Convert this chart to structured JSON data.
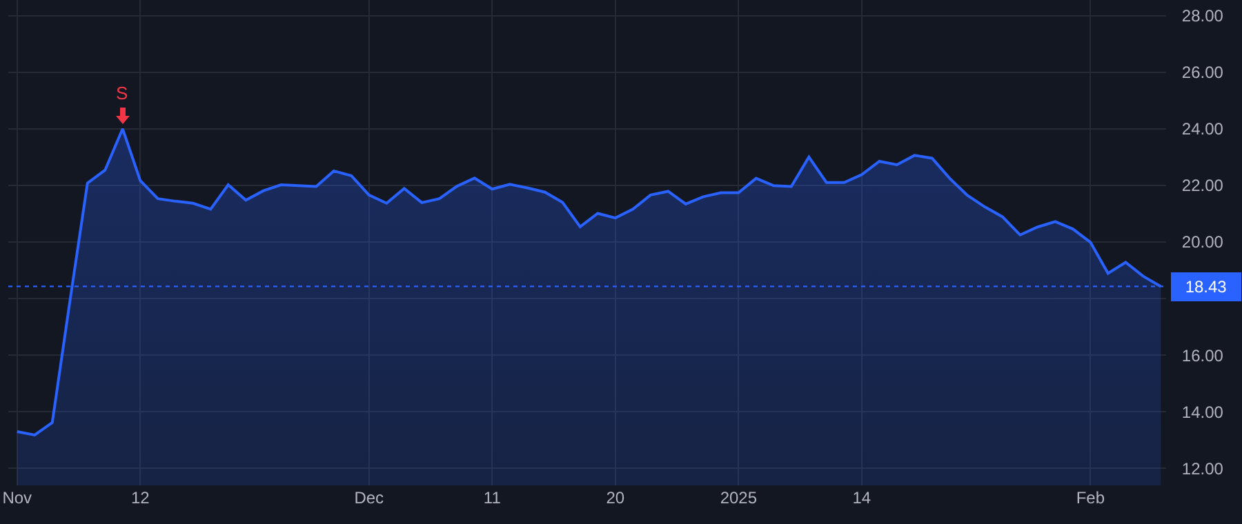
{
  "chart_data": {
    "type": "area",
    "categories": [
      "Nov",
      null,
      null,
      null,
      null,
      null,
      null,
      "12",
      null,
      null,
      null,
      null,
      null,
      null,
      null,
      null,
      null,
      null,
      null,
      null,
      "Dec",
      null,
      null,
      null,
      null,
      null,
      null,
      "11",
      null,
      null,
      null,
      null,
      null,
      null,
      "20",
      null,
      null,
      null,
      null,
      null,
      null,
      "2025",
      null,
      null,
      null,
      null,
      null,
      null,
      "14",
      null,
      null,
      null,
      null,
      null,
      null,
      null,
      null,
      null,
      null,
      null,
      null,
      "Feb",
      null,
      null,
      null,
      null
    ],
    "series": [
      {
        "color": "#2962ff",
        "values": [
          13.3,
          13.18,
          13.62,
          17.9,
          22.08,
          22.54,
          24.0,
          22.17,
          21.53,
          21.44,
          21.37,
          21.16,
          22.02,
          21.48,
          21.81,
          22.02,
          21.99,
          21.96,
          22.51,
          22.34,
          21.66,
          21.37,
          21.89,
          21.39,
          21.53,
          21.97,
          22.26,
          21.87,
          22.04,
          21.91,
          21.76,
          21.4,
          20.54,
          21.01,
          20.85,
          21.16,
          21.66,
          21.79,
          21.34,
          21.6,
          21.74,
          21.74,
          22.25,
          21.99,
          21.96,
          23.0,
          22.1,
          22.1,
          22.38,
          22.85,
          22.73,
          23.06,
          22.96,
          22.25,
          21.65,
          21.24,
          20.89,
          20.25,
          20.53,
          20.72,
          20.46,
          19.99,
          18.89,
          19.28,
          18.79,
          18.43
        ]
      }
    ],
    "ylim": [
      11.4,
      28.55
    ],
    "yticks": [
      {
        "value": 12,
        "label": "12.00"
      },
      {
        "value": 14,
        "label": "14.00"
      },
      {
        "value": 16,
        "label": "16.00"
      },
      {
        "value": 18,
        "label": null
      },
      {
        "value": 20,
        "label": "20.00"
      },
      {
        "value": 22,
        "label": "22.00"
      },
      {
        "value": 24,
        "label": "24.00"
      },
      {
        "value": 26,
        "label": "26.00"
      },
      {
        "value": 28,
        "label": "28.00"
      }
    ],
    "ref_lines": [
      {
        "axis": "y",
        "value": 18.43,
        "label": "18.43",
        "color": "#2962ff",
        "line_style": "dotted"
      }
    ],
    "annotations": [
      {
        "text": "S",
        "y": 24.0
      }
    ],
    "grid": true,
    "marker": "none",
    "line_style": "solid"
  }
}
